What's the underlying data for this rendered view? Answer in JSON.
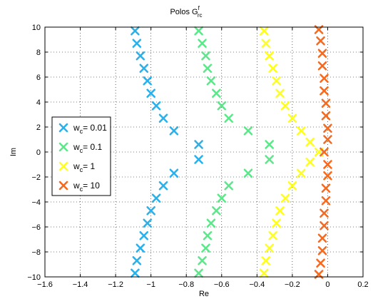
{
  "chart_data": {
    "type": "scatter",
    "title": "Polos G",
    "title_sup": "f",
    "title_sub": "rc",
    "xlabel": "Re",
    "ylabel": "Im",
    "xlim": [
      -1.6,
      0.2
    ],
    "ylim": [
      -10,
      10
    ],
    "xticks": [
      -1.6,
      -1.4,
      -1.2,
      -1,
      -0.8,
      -0.6,
      -0.4,
      -0.2,
      0,
      0.2
    ],
    "yticks": [
      -10,
      -8,
      -6,
      -4,
      -2,
      0,
      2,
      4,
      6,
      8,
      10
    ],
    "grid": true,
    "marker": "x",
    "legend_position": "middle-left",
    "series": [
      {
        "name": "w_c= 0.01",
        "legend_base": "w",
        "legend_sub": "c",
        "legend_rest": "= 0.01",
        "color": "#2ab0ea",
        "points": [
          [
            -1.09,
            9.7
          ],
          [
            -1.08,
            8.7
          ],
          [
            -1.06,
            7.7
          ],
          [
            -1.04,
            6.7
          ],
          [
            -1.02,
            5.7
          ],
          [
            -1.0,
            4.7
          ],
          [
            -0.97,
            3.7
          ],
          [
            -0.93,
            2.7
          ],
          [
            -0.87,
            1.7
          ],
          [
            -0.73,
            0.6
          ],
          [
            -0.73,
            -0.6
          ],
          [
            -0.87,
            -1.7
          ],
          [
            -0.93,
            -2.7
          ],
          [
            -0.97,
            -3.7
          ],
          [
            -1.0,
            -4.7
          ],
          [
            -1.02,
            -5.7
          ],
          [
            -1.04,
            -6.7
          ],
          [
            -1.06,
            -7.7
          ],
          [
            -1.08,
            -8.7
          ],
          [
            -1.09,
            -9.7
          ]
        ]
      },
      {
        "name": "w_c= 0.1",
        "legend_base": "w",
        "legend_sub": "c",
        "legend_rest": "= 0.1",
        "color": "#5ce88a",
        "points": [
          [
            -0.73,
            9.7
          ],
          [
            -0.71,
            8.7
          ],
          [
            -0.69,
            7.7
          ],
          [
            -0.68,
            6.7
          ],
          [
            -0.66,
            5.7
          ],
          [
            -0.63,
            4.7
          ],
          [
            -0.6,
            3.7
          ],
          [
            -0.56,
            2.7
          ],
          [
            -0.45,
            1.7
          ],
          [
            -0.33,
            0.6
          ],
          [
            -0.33,
            -0.6
          ],
          [
            -0.45,
            -1.7
          ],
          [
            -0.56,
            -2.7
          ],
          [
            -0.6,
            -3.7
          ],
          [
            -0.63,
            -4.7
          ],
          [
            -0.66,
            -5.7
          ],
          [
            -0.68,
            -6.7
          ],
          [
            -0.69,
            -7.7
          ],
          [
            -0.71,
            -8.7
          ],
          [
            -0.73,
            -9.7
          ]
        ]
      },
      {
        "name": "w_c= 1",
        "legend_base": "w",
        "legend_sub": "c",
        "legend_rest": "= 1",
        "color": "#ffff1e",
        "points": [
          [
            -0.36,
            9.7
          ],
          [
            -0.35,
            8.7
          ],
          [
            -0.33,
            7.7
          ],
          [
            -0.31,
            6.7
          ],
          [
            -0.29,
            5.7
          ],
          [
            -0.27,
            4.7
          ],
          [
            -0.24,
            3.7
          ],
          [
            -0.2,
            2.7
          ],
          [
            -0.15,
            1.7
          ],
          [
            -0.1,
            0.8
          ],
          [
            -0.05,
            0.0
          ],
          [
            -0.1,
            -0.8
          ],
          [
            -0.15,
            -1.7
          ],
          [
            -0.2,
            -2.7
          ],
          [
            -0.24,
            -3.7
          ],
          [
            -0.27,
            -4.7
          ],
          [
            -0.29,
            -5.7
          ],
          [
            -0.31,
            -6.7
          ],
          [
            -0.33,
            -7.7
          ],
          [
            -0.35,
            -8.7
          ],
          [
            -0.36,
            -9.7
          ]
        ]
      },
      {
        "name": "w_c= 10",
        "legend_base": "w",
        "legend_sub": "c",
        "legend_rest": "= 10",
        "color": "#f56a1f",
        "points": [
          [
            -0.05,
            9.8
          ],
          [
            -0.04,
            8.9
          ],
          [
            -0.03,
            7.9
          ],
          [
            -0.03,
            6.9
          ],
          [
            -0.02,
            5.9
          ],
          [
            -0.02,
            4.9
          ],
          [
            -0.01,
            3.9
          ],
          [
            -0.01,
            2.9
          ],
          [
            0.0,
            1.9
          ],
          [
            0.0,
            1.0
          ],
          [
            -0.02,
            0.0
          ],
          [
            0.0,
            -1.0
          ],
          [
            0.0,
            -1.9
          ],
          [
            -0.01,
            -2.9
          ],
          [
            -0.01,
            -3.9
          ],
          [
            -0.02,
            -4.9
          ],
          [
            -0.02,
            -5.9
          ],
          [
            -0.03,
            -6.9
          ],
          [
            -0.03,
            -7.9
          ],
          [
            -0.04,
            -8.9
          ],
          [
            -0.05,
            -9.8
          ]
        ]
      }
    ]
  }
}
